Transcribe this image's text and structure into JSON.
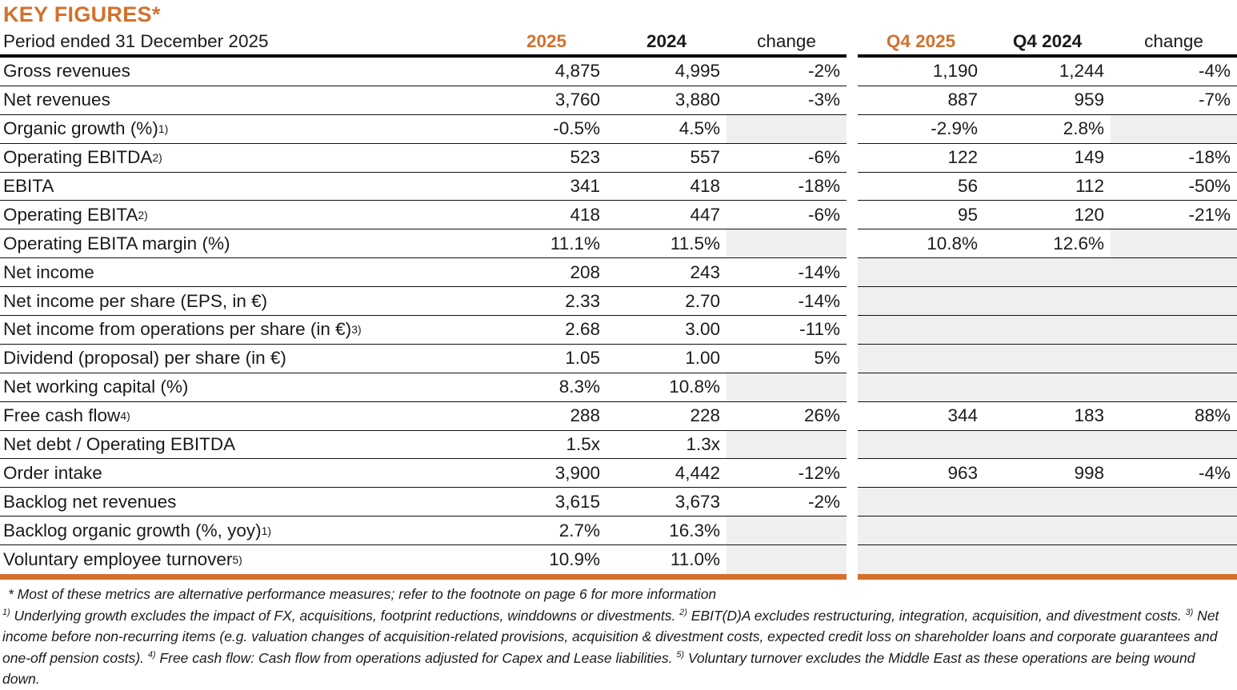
{
  "title": "KEY FIGURES*",
  "colors": {
    "accent": "#d4702c",
    "gray_cell": "#efefef"
  },
  "table": {
    "period_label": "Period ended 31 December 2025",
    "columns": [
      "2025",
      "2024",
      "change",
      "Q4 2025",
      "Q4 2024",
      "change"
    ],
    "rows": [
      {
        "label": "Gross revenues",
        "sup": "",
        "fy": [
          "4,875",
          "4,995",
          "-2%"
        ],
        "q4": [
          "1,190",
          "1,244",
          "-4%"
        ]
      },
      {
        "label": "Net revenues",
        "sup": "",
        "fy": [
          "3,760",
          "3,880",
          "-3%"
        ],
        "q4": [
          "887",
          "959",
          "-7%"
        ]
      },
      {
        "label": "Organic growth (%)",
        "sup": "1)",
        "fy": [
          "-0.5%",
          "4.5%",
          ""
        ],
        "q4": [
          "-2.9%",
          "2.8%",
          ""
        ]
      },
      {
        "label": "Operating EBITDA",
        "sup": "2)",
        "fy": [
          "523",
          "557",
          "-6%"
        ],
        "q4": [
          "122",
          "149",
          "-18%"
        ]
      },
      {
        "label": "EBITA",
        "sup": "",
        "fy": [
          "341",
          "418",
          "-18%"
        ],
        "q4": [
          "56",
          "112",
          "-50%"
        ]
      },
      {
        "label": "Operating EBITA",
        "sup": "2)",
        "fy": [
          "418",
          "447",
          "-6%"
        ],
        "q4": [
          "95",
          "120",
          "-21%"
        ]
      },
      {
        "label": "Operating EBITA margin (%)",
        "sup": "",
        "fy": [
          "11.1%",
          "11.5%",
          ""
        ],
        "q4": [
          "10.8%",
          "12.6%",
          ""
        ]
      },
      {
        "label": "Net income",
        "sup": "",
        "fy": [
          "208",
          "243",
          "-14%"
        ],
        "q4": [
          "",
          "",
          ""
        ]
      },
      {
        "label": "Net income per share (EPS, in €)",
        "sup": "",
        "fy": [
          "2.33",
          "2.70",
          "-14%"
        ],
        "q4": [
          "",
          "",
          ""
        ]
      },
      {
        "label": "Net income from operations per share (in €)",
        "sup": "3)",
        "fy": [
          "2.68",
          "3.00",
          "-11%"
        ],
        "q4": [
          "",
          "",
          ""
        ]
      },
      {
        "label": "Dividend (proposal) per share (in €)",
        "sup": "",
        "fy": [
          "1.05",
          "1.00",
          "5%"
        ],
        "q4": [
          "",
          "",
          ""
        ]
      },
      {
        "label": "Net working capital (%)",
        "sup": "",
        "fy": [
          "8.3%",
          "10.8%",
          ""
        ],
        "q4": [
          "",
          "",
          ""
        ]
      },
      {
        "label": "Free cash flow",
        "sup": "4)",
        "fy": [
          "288",
          "228",
          "26%"
        ],
        "q4": [
          "344",
          "183",
          "88%"
        ]
      },
      {
        "label": "Net debt / Operating EBITDA",
        "sup": "",
        "fy": [
          "1.5x",
          "1.3x",
          ""
        ],
        "q4": [
          "",
          "",
          ""
        ]
      },
      {
        "label": "Order intake",
        "sup": "",
        "fy": [
          "3,900",
          "4,442",
          "-12%"
        ],
        "q4": [
          "963",
          "998",
          "-4%"
        ]
      },
      {
        "label": "Backlog net revenues",
        "sup": "",
        "fy": [
          "3,615",
          "3,673",
          "-2%"
        ],
        "q4": [
          "",
          "",
          ""
        ]
      },
      {
        "label": "Backlog organic growth (%, yoy)",
        "sup": "1)",
        "fy": [
          "2.7%",
          "16.3%",
          ""
        ],
        "q4": [
          "",
          "",
          ""
        ]
      },
      {
        "label": "Voluntary employee turnover",
        "sup": "5)",
        "fy": [
          "10.9%",
          "11.0%",
          ""
        ],
        "q4": [
          "",
          "",
          ""
        ]
      }
    ]
  },
  "footnotes": {
    "star_line": "* Most of these metrics are alternative performance measures; refer to the footnote on page 6 for more information",
    "items": [
      {
        "sup": "1)",
        "text": " Underlying growth excludes the impact of FX, acquisitions, footprint reductions, winddowns or divestments. "
      },
      {
        "sup": "2)",
        "text": " EBIT(D)A excludes restructuring, integration, acquisition, and divestment costs. "
      },
      {
        "sup": "3)",
        "text": " Net income before non-recurring items (e.g. valuation changes of acquisition-related provisions, acquisition & divestment costs, expected credit loss on shareholder loans and corporate guarantees and one-off pension costs). "
      },
      {
        "sup": "4)",
        "text": " Free cash flow: Cash flow from operations adjusted for Capex and Lease liabilities. "
      },
      {
        "sup": "5)",
        "text": " Voluntary turnover excludes the Middle East as these operations are being wound down."
      }
    ]
  }
}
